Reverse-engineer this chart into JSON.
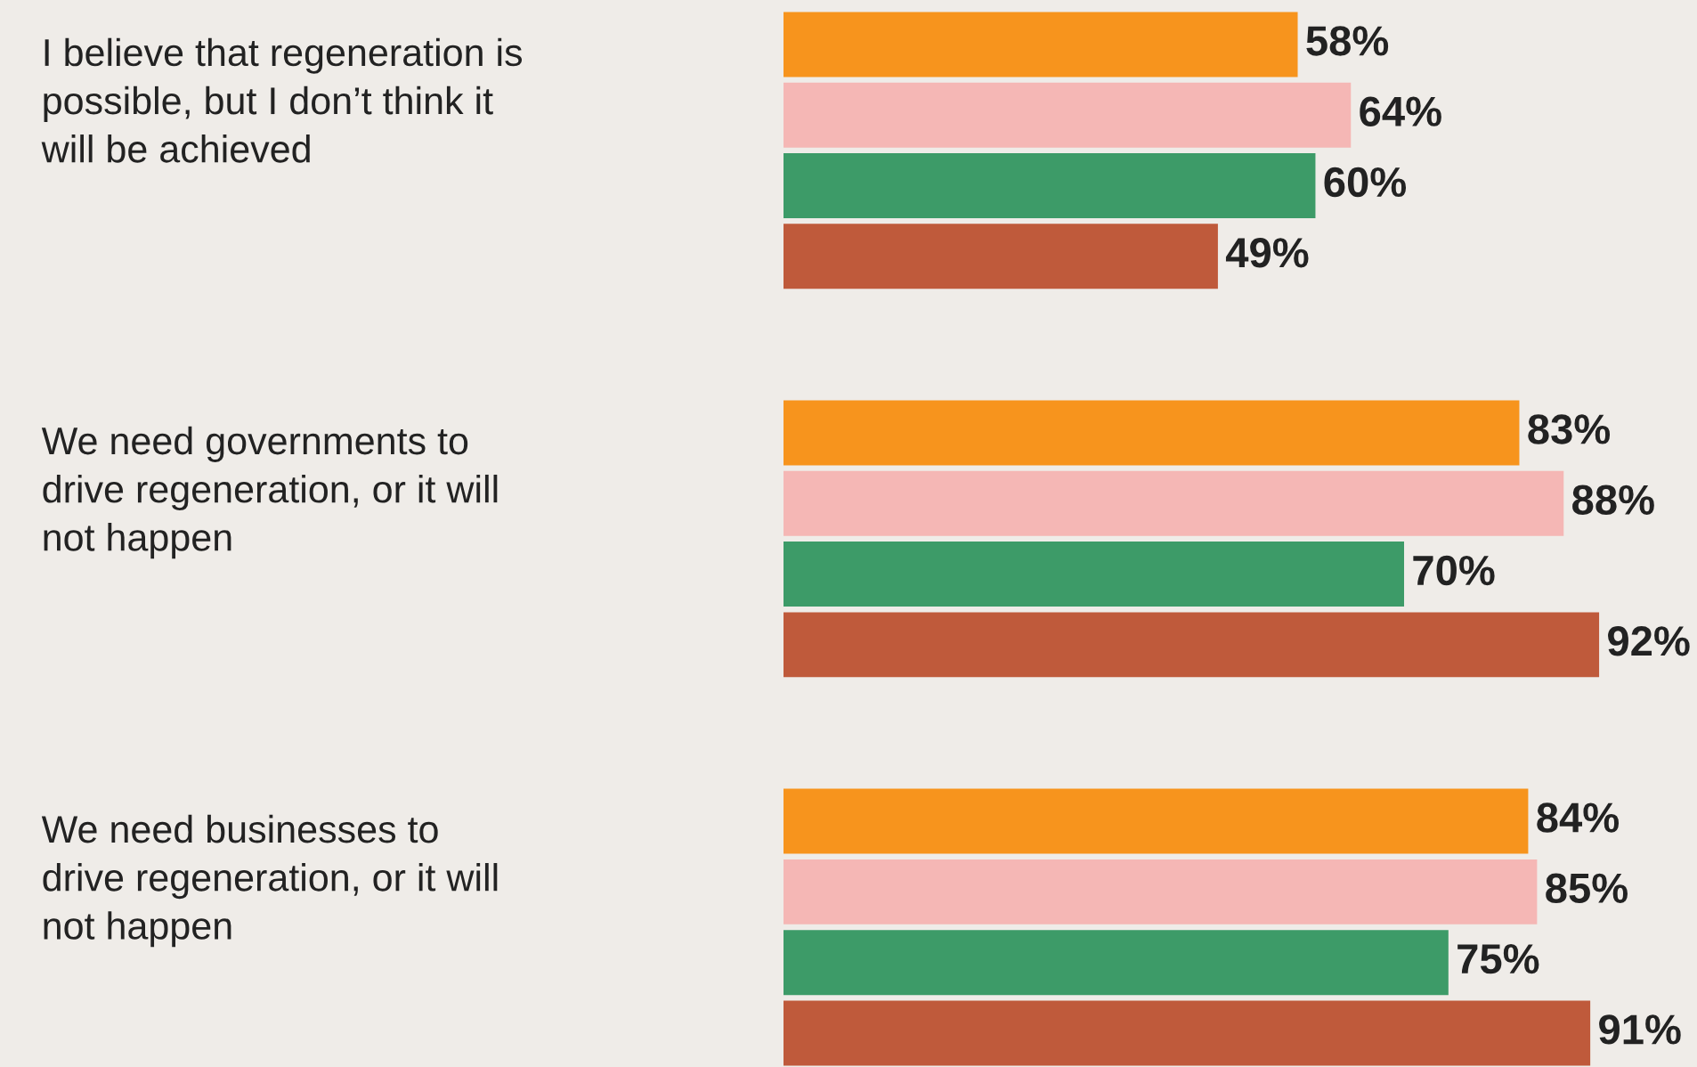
{
  "chart_data": {
    "type": "bar",
    "orientation": "horizontal",
    "categories": [
      "I believe that regeneration is\npossible, but I don’t think it\nwill be achieved",
      "We need governments to\ndrive regeneration, or it will\nnot happen",
      "We need businesses to\ndrive regeneration, or it will\nnot happen"
    ],
    "series": [
      {
        "color": "#f7941d",
        "values": [
          58,
          83,
          84
        ],
        "value_labels": [
          "58%",
          "83%",
          "84%"
        ]
      },
      {
        "color": "#f5b7b5",
        "values": [
          64,
          88,
          85
        ],
        "value_labels": [
          "64%",
          "88%",
          "85%"
        ]
      },
      {
        "color": "#3d9b68",
        "values": [
          60,
          70,
          75
        ],
        "value_labels": [
          "60%",
          "70%",
          "75%"
        ]
      },
      {
        "color": "#bf5a3b",
        "values": [
          49,
          92,
          91
        ],
        "value_labels": [
          "49%",
          "92%",
          "91%"
        ]
      }
    ]
  }
}
